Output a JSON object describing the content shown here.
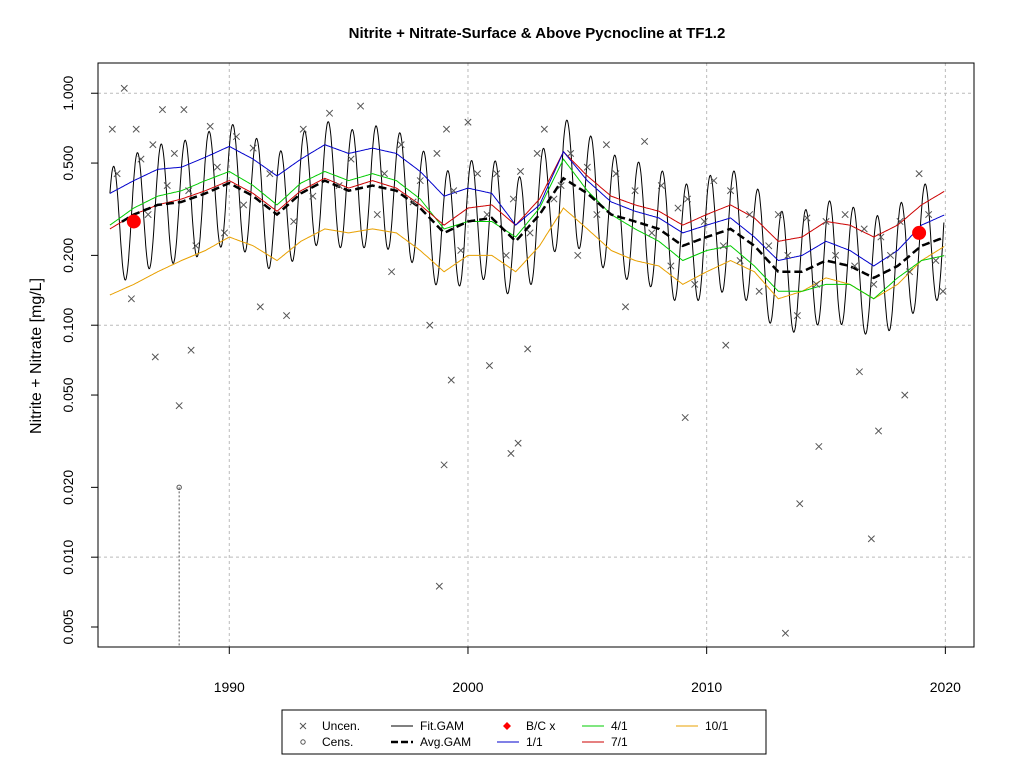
{
  "chart_data": {
    "type": "line",
    "title": "Nitrite + Nitrate-Surface & Above Pycnocline at TF1.2",
    "xlabel": "",
    "ylabel": "Nitrite + Nitrate [mg/L]",
    "xlim": [
      1984.5,
      2021.2
    ],
    "ylim": [
      0.0041,
      1.35
    ],
    "log_y": true,
    "grid": true,
    "x_ticks": [
      "1990",
      "2000",
      "2010",
      "2020"
    ],
    "y_ticks": [
      "0.005",
      "0.010",
      "0.020",
      "0.050",
      "0.100",
      "0.200",
      "0.500",
      "1.000"
    ],
    "legend_position": "bottom",
    "legend": [
      "Uncen.",
      "Cens.",
      "Fit.GAM",
      "Avg.GAM",
      "B/C x",
      "1/1",
      "4/1",
      "7/1",
      "10/1"
    ],
    "colors": {
      "uncen": "#555555",
      "cens": "#555555",
      "fit_gam": "#000000",
      "avg_gam": "#000000",
      "bc_x": "#ff0000",
      "one_one": "#0000cc",
      "four_one": "#00cc00",
      "seven_one": "#cc0000",
      "ten_one": "#e8a000",
      "grid": "#bbbbbb"
    },
    "series": [
      {
        "name": "Avg.GAM",
        "x": [
          1985,
          1986,
          1987,
          1988,
          1989,
          1990,
          1991,
          1992,
          1993,
          1994,
          1995,
          1996,
          1997,
          1998,
          1999,
          2000,
          2001,
          2002,
          2003,
          2004,
          2005,
          2006,
          2007,
          2008,
          2009,
          2010,
          2011,
          2012,
          2013,
          2014,
          2015,
          2016,
          2017,
          2018,
          2019,
          2020
        ],
        "y": [
          0.26,
          0.3,
          0.33,
          0.34,
          0.37,
          0.41,
          0.36,
          0.3,
          0.37,
          0.42,
          0.38,
          0.4,
          0.38,
          0.32,
          0.25,
          0.28,
          0.29,
          0.23,
          0.3,
          0.43,
          0.37,
          0.3,
          0.28,
          0.26,
          0.22,
          0.24,
          0.26,
          0.22,
          0.17,
          0.17,
          0.19,
          0.18,
          0.16,
          0.18,
          0.22,
          0.24
        ]
      },
      {
        "name": "1/1",
        "x": [
          1985,
          1986,
          1987,
          1988,
          1989,
          1990,
          1991,
          1992,
          1993,
          1994,
          1995,
          1996,
          1997,
          1998,
          1999,
          2000,
          2001,
          2002,
          2003,
          2004,
          2005,
          2006,
          2007,
          2008,
          2009,
          2010,
          2011,
          2012,
          2013,
          2014,
          2015,
          2016,
          2017,
          2018,
          2019,
          2020
        ],
        "y": [
          0.37,
          0.42,
          0.47,
          0.48,
          0.53,
          0.59,
          0.52,
          0.44,
          0.52,
          0.6,
          0.55,
          0.58,
          0.55,
          0.46,
          0.36,
          0.39,
          0.37,
          0.27,
          0.33,
          0.56,
          0.42,
          0.34,
          0.31,
          0.29,
          0.25,
          0.27,
          0.29,
          0.24,
          0.19,
          0.2,
          0.23,
          0.21,
          0.18,
          0.21,
          0.27,
          0.3
        ]
      },
      {
        "name": "4/1",
        "x": [
          1985,
          1986,
          1987,
          1988,
          1989,
          1990,
          1991,
          1992,
          1993,
          1994,
          1995,
          1996,
          1997,
          1998,
          1999,
          2000,
          2001,
          2002,
          2003,
          2004,
          2005,
          2006,
          2007,
          2008,
          2009,
          2010,
          2011,
          2012,
          2013,
          2014,
          2015,
          2016,
          2017,
          2018,
          2019,
          2020
        ],
        "y": [
          0.27,
          0.32,
          0.36,
          0.38,
          0.42,
          0.46,
          0.4,
          0.33,
          0.41,
          0.46,
          0.42,
          0.45,
          0.42,
          0.35,
          0.26,
          0.28,
          0.28,
          0.24,
          0.32,
          0.52,
          0.38,
          0.3,
          0.26,
          0.23,
          0.19,
          0.21,
          0.22,
          0.18,
          0.14,
          0.14,
          0.15,
          0.15,
          0.13,
          0.16,
          0.19,
          0.2
        ]
      },
      {
        "name": "7/1",
        "x": [
          1985,
          1986,
          1987,
          1988,
          1989,
          1990,
          1991,
          1992,
          1993,
          1994,
          1995,
          1996,
          1997,
          1998,
          1999,
          2000,
          2001,
          2002,
          2003,
          2004,
          2005,
          2006,
          2007,
          2008,
          2009,
          2010,
          2011,
          2012,
          2013,
          2014,
          2015,
          2016,
          2017,
          2018,
          2019,
          2020
        ],
        "y": [
          0.26,
          0.3,
          0.33,
          0.35,
          0.38,
          0.42,
          0.37,
          0.31,
          0.38,
          0.43,
          0.39,
          0.42,
          0.39,
          0.33,
          0.27,
          0.32,
          0.33,
          0.27,
          0.35,
          0.56,
          0.44,
          0.36,
          0.33,
          0.31,
          0.27,
          0.3,
          0.33,
          0.29,
          0.23,
          0.24,
          0.28,
          0.27,
          0.24,
          0.27,
          0.33,
          0.38
        ]
      },
      {
        "name": "10/1",
        "x": [
          1985,
          1986,
          1987,
          1988,
          1989,
          1990,
          1991,
          1992,
          1993,
          1994,
          1995,
          1996,
          1997,
          1998,
          1999,
          2000,
          2001,
          2002,
          2003,
          2004,
          2005,
          2006,
          2007,
          2008,
          2009,
          2010,
          2011,
          2012,
          2013,
          2014,
          2015,
          2016,
          2017,
          2018,
          2019,
          2020
        ],
        "y": [
          0.135,
          0.15,
          0.17,
          0.19,
          0.21,
          0.24,
          0.22,
          0.19,
          0.23,
          0.26,
          0.25,
          0.26,
          0.25,
          0.21,
          0.17,
          0.2,
          0.2,
          0.17,
          0.22,
          0.32,
          0.26,
          0.21,
          0.19,
          0.18,
          0.15,
          0.17,
          0.19,
          0.17,
          0.13,
          0.14,
          0.16,
          0.15,
          0.13,
          0.15,
          0.19,
          0.22
        ]
      },
      {
        "name": "B/C x",
        "x": [
          1986.0,
          2018.9
        ],
        "y": [
          0.28,
          0.25
        ]
      }
    ],
    "uncensored": {
      "x": [
        1985.1,
        1985.3,
        1985.6,
        1985.9,
        1986.1,
        1986.3,
        1986.6,
        1986.8,
        1987.2,
        1987.4,
        1987.7,
        1988.1,
        1988.3,
        1988.6,
        1989.2,
        1989.5,
        1989.8,
        1990.3,
        1990.6,
        1991.0,
        1991.3,
        1991.7,
        1992.4,
        1992.7,
        1993.1,
        1993.5,
        1994.2,
        1994.6,
        1995.1,
        1995.5,
        1996.2,
        1996.5,
        1996.8,
        1997.2,
        1997.7,
        1998.0,
        1998.4,
        1998.7,
        1999.1,
        1999.4,
        1999.7,
        2000.0,
        2000.4,
        2000.8,
        2001.2,
        2001.6,
        2001.9,
        2002.2,
        2002.6,
        2002.9,
        2003.2,
        2003.6,
        2003.9,
        2004.3,
        2004.6,
        2005.0,
        2005.4,
        2005.8,
        2006.2,
        2006.6,
        2007.0,
        2007.4,
        2007.7,
        2008.1,
        2008.5,
        2008.8,
        2009.2,
        2009.5,
        2009.9,
        2010.3,
        2010.7,
        2011.0,
        2011.4,
        2011.8,
        2012.2,
        2012.6,
        2013.0,
        2013.4,
        2013.8,
        2014.2,
        2014.6,
        2015.0,
        2015.4,
        2015.8,
        2016.2,
        2016.6,
        2017.0,
        2017.3,
        2017.7,
        2018.1,
        2018.5,
        2018.9,
        2019.3,
        2019.6,
        2019.9,
        1986.9,
        1987.9,
        1988.4,
        1998.8,
        1999.0,
        1999.3,
        2000.9,
        2001.8,
        2002.1,
        2002.5,
        2009.1,
        2010.8,
        2013.3,
        2013.9,
        2014.7,
        2016.4,
        2016.9,
        2017.2,
        2018.3
      ],
      "y": [
        0.7,
        0.45,
        1.05,
        0.13,
        0.7,
        0.52,
        0.3,
        0.6,
        0.85,
        0.4,
        0.55,
        0.85,
        0.38,
        0.22,
        0.72,
        0.48,
        0.25,
        0.65,
        0.33,
        0.58,
        0.12,
        0.45,
        0.11,
        0.28,
        0.7,
        0.36,
        0.82,
        0.4,
        0.52,
        0.88,
        0.3,
        0.45,
        0.17,
        0.6,
        0.34,
        0.42,
        0.1,
        0.55,
        0.7,
        0.38,
        0.21,
        0.75,
        0.45,
        0.3,
        0.45,
        0.2,
        0.35,
        0.46,
        0.25,
        0.55,
        0.7,
        0.35,
        0.4,
        0.55,
        0.2,
        0.48,
        0.3,
        0.6,
        0.45,
        0.12,
        0.38,
        0.62,
        0.25,
        0.4,
        0.18,
        0.32,
        0.35,
        0.15,
        0.28,
        0.42,
        0.22,
        0.38,
        0.19,
        0.3,
        0.14,
        0.22,
        0.3,
        0.2,
        0.11,
        0.29,
        0.15,
        0.28,
        0.2,
        0.3,
        0.18,
        0.26,
        0.15,
        0.24,
        0.2,
        0.28,
        0.17,
        0.45,
        0.3,
        0.19,
        0.14,
        0.073,
        0.045,
        0.078,
        0.0075,
        0.025,
        0.058,
        0.067,
        0.028,
        0.031,
        0.079,
        0.04,
        0.082,
        0.0047,
        0.017,
        0.03,
        0.063,
        0.012,
        0.035,
        0.05
      ]
    },
    "censored": {
      "x": [
        1987.9
      ],
      "y": [
        0.02
      ]
    }
  }
}
